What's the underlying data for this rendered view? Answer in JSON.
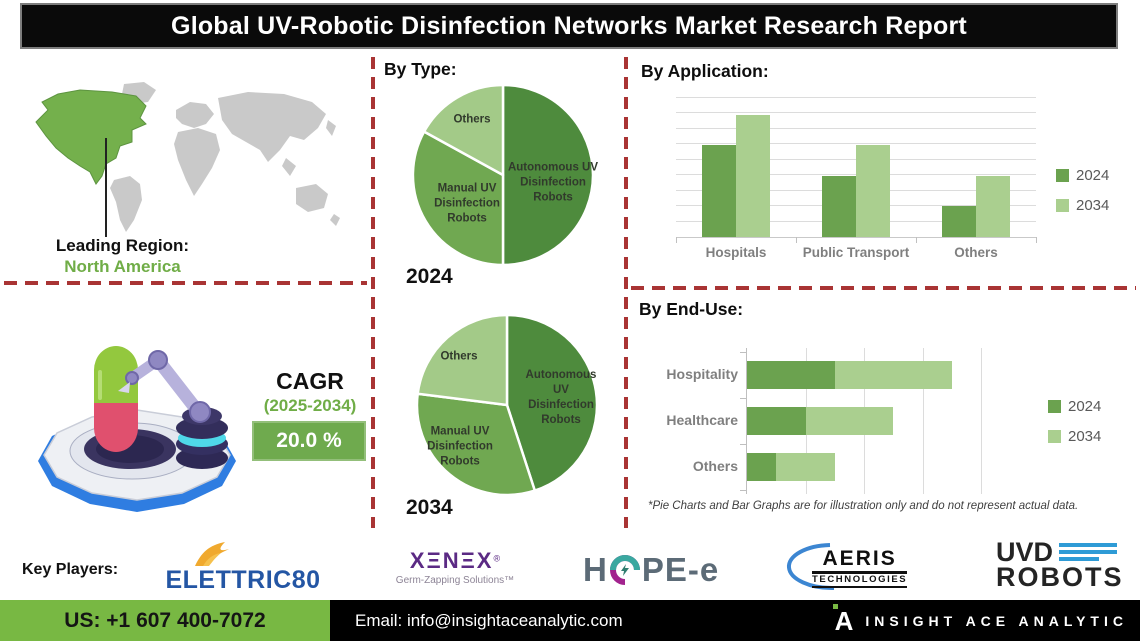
{
  "title": "Global UV-Robotic Disinfection Networks Market Research Report",
  "leading_region": {
    "label": "Leading Region:",
    "value": "North America"
  },
  "cagr": {
    "label": "CAGR",
    "period": "(2025-2034)",
    "value": "20.0 %"
  },
  "footnote": "*Pie Charts and Bar Graphs are for illustration only and do not represent actual data.",
  "key_players": {
    "label": "Key Players:",
    "elettric80": {
      "name": "ELETTRIC80"
    },
    "xenex": {
      "name": "XENEX",
      "display": "XΞNΞX",
      "registered": "®",
      "tagline": "Germ-Zapping Solutions™"
    },
    "hope_e": {
      "prefix": "H",
      "suffix": "PE-e"
    },
    "aeris": {
      "name": "AERIS",
      "sub": "TECHNOLOGIES"
    },
    "uvd_robots": {
      "line1": "UVD",
      "line2": "ROBOTS"
    }
  },
  "footer": {
    "phone": "US: +1 607 400-7072",
    "email": "Email: info@insightaceanalytic.com",
    "brand": "INSIGHT ACE ANALYTIC",
    "brand_initial": "A"
  },
  "colors": {
    "pie_autonomous": "#4e8b3d",
    "pie_manual": "#70a851",
    "pie_others": "#a3ca88",
    "bar_2024": "#6ba24f",
    "bar_2034": "#aacf8f",
    "divider_red": "#a93434",
    "map_highlight_green": "#74b04c",
    "map_gray": "#c9c9c9",
    "cagr_green": "#70ad47",
    "cagr_box_green": "#6faa4e",
    "footer_green": "#78b843"
  },
  "chart_data": [
    {
      "id": "by_type_2024",
      "type": "pie",
      "title": "By Type:",
      "year": "2024",
      "slices": [
        {
          "label": "Autonomous UV Disinfection Robots",
          "value": 50,
          "color": "#4e8b3d"
        },
        {
          "label": "Manual UV Disinfection Robots",
          "value": 33,
          "color": "#70a851"
        },
        {
          "label": "Others",
          "value": 17,
          "color": "#a3ca88"
        }
      ]
    },
    {
      "id": "by_type_2034",
      "type": "pie",
      "title": "By Type:",
      "year": "2034",
      "slices": [
        {
          "label": "Autonomous UV Disinfection Robots",
          "value": 45,
          "color": "#4e8b3d"
        },
        {
          "label": "Manual UV Disinfection Robots",
          "value": 32,
          "color": "#70a851"
        },
        {
          "label": "Others",
          "value": 23,
          "color": "#a3ca88"
        }
      ]
    },
    {
      "id": "by_application",
      "type": "bar",
      "title": "By Application:",
      "categories": [
        "Hospitals",
        "Public Transport",
        "Others"
      ],
      "series": [
        {
          "name": "2024",
          "color": "#6ba24f",
          "values": [
            66,
            44,
            22
          ]
        },
        {
          "name": "2034",
          "color": "#aacf8f",
          "values": [
            88,
            66,
            44
          ]
        }
      ],
      "ylim": [
        0,
        100
      ],
      "grid": true,
      "legend_position": "right"
    },
    {
      "id": "by_end_use",
      "type": "stacked-hbar",
      "title": "By End-Use:",
      "categories": [
        "Hospitality",
        "Healthcare",
        "Others"
      ],
      "series": [
        {
          "name": "2024",
          "color": "#6ba24f",
          "values": [
            3,
            2,
            1
          ]
        },
        {
          "name": "2034",
          "color": "#aacf8f",
          "values": [
            4,
            3,
            2
          ]
        }
      ],
      "xlim": [
        0,
        8
      ],
      "grid": true,
      "legend_position": "right"
    }
  ]
}
